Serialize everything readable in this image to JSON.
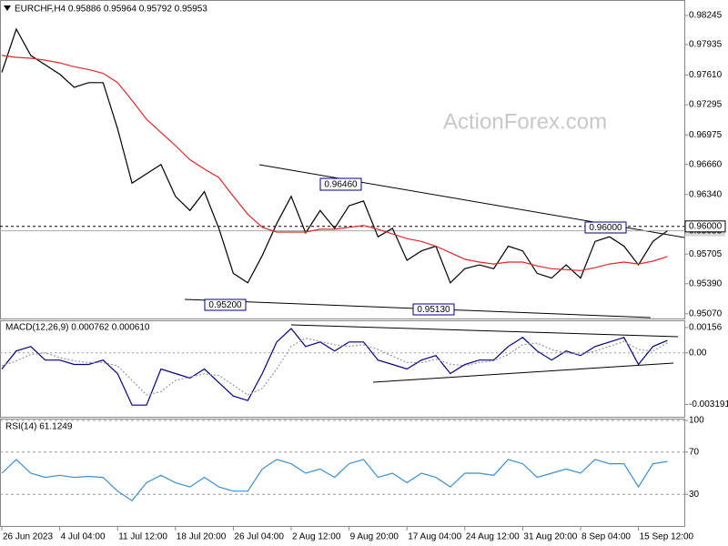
{
  "chart_data": [
    {
      "type": "line",
      "title": "EURCHF,H4 0.95886 0.95964 0.95792 0.95953",
      "watermark": "ActionForex.com",
      "annotations": [
        "0.96460",
        "0.95200",
        "0.95130",
        "0.96000"
      ],
      "ylim": [
        0.9502,
        0.984
      ],
      "yticks": [
        0.98245,
        {
          "value": 0.97935,
          "label": "0.97935"
        },
        {
          "value": 0.9761,
          "label": "0.97610"
        },
        0.97295,
        0.96975,
        {
          "value": 0.9666,
          "label": "0.96660"
        },
        {
          "value": 0.9634,
          "label": "0.96340"
        },
        0.95705,
        {
          "value": 0.9539,
          "label": "0.95390"
        },
        {
          "value": 0.9507,
          "label": "0.95070"
        }
      ],
      "level_line": {
        "value": 0.96,
        "label": "0.96000"
      },
      "price_line": {
        "value": 0.95953,
        "label": "0.95953"
      },
      "series": [
        {
          "color": "#000000",
          "values": [
            0.9764,
            0.981,
            0.9782,
            0.9772,
            0.9762,
            0.9748,
            0.9753,
            0.9753,
            0.9704,
            0.9646,
            0.9656,
            0.9666,
            0.9632,
            0.9617,
            0.9637,
            0.9598,
            0.955,
            0.954,
            0.9569,
            0.9603,
            0.9632,
            0.9593,
            0.9617,
            0.9598,
            0.9622,
            0.9627,
            0.9589,
            0.9598,
            0.9564,
            0.9574,
            0.9579,
            0.954,
            0.9555,
            0.9559,
            0.9555,
            0.9579,
            0.9574,
            0.955,
            0.9545,
            0.9559,
            0.9545,
            0.9584,
            0.9589,
            0.9579,
            0.9559,
            0.9584,
            0.95953
          ]
        },
        {
          "color": "#e0282a",
          "values": [
            0.9782,
            0.978,
            0.9779,
            0.9777,
            0.9774,
            0.977,
            0.9767,
            0.9763,
            0.9753,
            0.9734,
            0.9714,
            0.97,
            0.9686,
            0.9671,
            0.9661,
            0.9652,
            0.9632,
            0.9613,
            0.9599,
            0.9594,
            0.9594,
            0.9594,
            0.9597,
            0.9597,
            0.9599,
            0.9601,
            0.9597,
            0.9592,
            0.9587,
            0.9584,
            0.9579,
            0.9572,
            0.9565,
            0.9562,
            0.956,
            0.9562,
            0.9562,
            0.9558,
            0.9555,
            0.9554,
            0.9553,
            0.9556,
            0.956,
            0.9562,
            0.956,
            0.9563,
            0.9568
          ]
        }
      ]
    },
    {
      "type": "line",
      "title": "MACD(12,26,9) 0.000762 0.000610",
      "ylim": [
        -0.00395,
        0.00195
      ],
      "yticks": [
        0.00156,
        {
          "value": 0,
          "label": "0.00"
        },
        -0.003191
      ],
      "zero_line": true,
      "series": [
        {
          "color": "#000080",
          "values": [
            -0.001,
            0.00011,
            0.00039,
            -0.00045,
            -0.00045,
            -0.00072,
            -0.00072,
            -0.00045,
            -0.00128,
            -0.00323,
            -0.00323,
            -0.001,
            -0.00128,
            -0.00156,
            -0.001,
            -0.00184,
            -0.00267,
            -0.00295,
            -0.00128,
            0.00067,
            0.0015,
            0.00039,
            0.00067,
            0.00011,
            0.00067,
            0.00067,
            -0.00045,
            -0.00072,
            -0.001,
            -0.00045,
            -0.00017,
            -0.00128,
            -0.00072,
            -0.00045,
            -0.00045,
            0.00039,
            0.00095,
            0.00011,
            -0.00045,
            0.00011,
            -0.00017,
            0.00039,
            0.00067,
            0.00095,
            -0.00072,
            0.00039,
            0.000762
          ]
        },
        {
          "color": "#999999",
          "style": "dotted",
          "values": [
            -0.0008,
            -0.0005,
            -0.0001,
            0,
            -0.0003,
            -0.0005,
            -0.0006,
            -0.0006,
            -0.0008,
            -0.0017,
            -0.0026,
            -0.0024,
            -0.0017,
            -0.0015,
            -0.0013,
            -0.0014,
            -0.002,
            -0.0026,
            -0.0022,
            -0.001,
            0.0004,
            0.0009,
            0.0007,
            0.0005,
            0.0004,
            0.0005,
            0.0002,
            -0.0002,
            -0.0006,
            -0.0006,
            -0.0004,
            -0.0007,
            -0.0008,
            -0.0006,
            -0.0005,
            -0.0001,
            0.0005,
            0.0006,
            0.0002,
            0,
            -0.0001,
            0.0001,
            0.0004,
            0.0007,
            0.0002,
            0.0001,
            0.00061
          ]
        }
      ]
    },
    {
      "type": "line",
      "title": "RSI(14) 61.1249",
      "ylim": [
        0,
        100
      ],
      "yticks": [
        100,
        70,
        30
      ],
      "grid": true,
      "categories": [
        "26 Jun 2023",
        null,
        null,
        null,
        "4 Jul 04:00",
        null,
        null,
        null,
        "11 Jul 12:00",
        null,
        null,
        null,
        "18 Jul 20:00",
        null,
        null,
        null,
        "26 Jul 04:00",
        null,
        null,
        null,
        "2 Aug 12:00",
        null,
        null,
        null,
        "9 Aug 20:00",
        null,
        null,
        null,
        "17 Aug 04:00",
        null,
        null,
        null,
        "24 Aug 12:00",
        null,
        null,
        null,
        "31 Aug 20:00",
        null,
        null,
        null,
        "8 Sep 04:00",
        null,
        null,
        null,
        "15 Sep 12:00",
        null,
        null
      ],
      "series": [
        {
          "color": "#3c8fd0",
          "values": [
            50,
            63,
            50,
            46,
            48,
            46,
            47,
            46,
            33,
            24,
            41,
            48,
            41,
            37,
            46,
            37,
            33,
            33,
            54,
            63,
            59,
            50,
            54,
            46,
            59,
            63,
            46,
            50,
            41,
            50,
            46,
            37,
            50,
            50,
            48,
            63,
            59,
            46,
            50,
            54,
            50,
            63,
            59,
            59,
            37,
            59,
            61.1249
          ]
        }
      ]
    }
  ]
}
